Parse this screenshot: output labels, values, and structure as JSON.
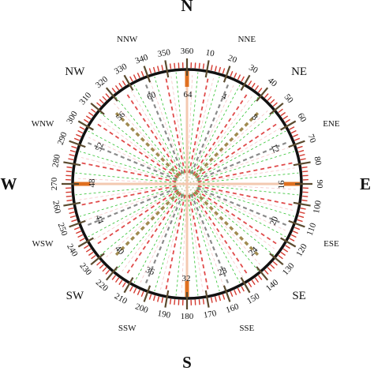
{
  "compass": {
    "cardinals": [
      {
        "label": "N",
        "bearing": 0
      },
      {
        "label": "E",
        "bearing": 90
      },
      {
        "label": "S",
        "bearing": 180
      },
      {
        "label": "W",
        "bearing": 270
      }
    ],
    "intercardinals": [
      {
        "label": "NE",
        "bearing": 45
      },
      {
        "label": "SE",
        "bearing": 135
      },
      {
        "label": "SW",
        "bearing": 225
      },
      {
        "label": "NW",
        "bearing": 315
      }
    ],
    "minor_points": [
      {
        "label": "NNE",
        "bearing": 22.5
      },
      {
        "label": "ENE",
        "bearing": 67.5
      },
      {
        "label": "ESE",
        "bearing": 112.5
      },
      {
        "label": "SSE",
        "bearing": 157.5
      },
      {
        "label": "SSW",
        "bearing": 202.5
      },
      {
        "label": "WSW",
        "bearing": 247.5
      },
      {
        "label": "WNW",
        "bearing": 292.5
      },
      {
        "label": "NNW",
        "bearing": 337.5
      }
    ],
    "degree_labels": [
      "360",
      "10",
      "20",
      "30",
      "40",
      "50",
      "60",
      "70",
      "80",
      "90",
      "100",
      "110",
      "120",
      "130",
      "140",
      "150",
      "160",
      "170",
      "180",
      "190",
      "200",
      "210",
      "220",
      "230",
      "240",
      "250",
      "260",
      "270",
      "280",
      "290",
      "300",
      "310",
      "320",
      "330",
      "340",
      "350"
    ],
    "inner_labels": [
      "64",
      "4",
      "8",
      "12",
      "16",
      "20",
      "24",
      "28",
      "32",
      "36",
      "40",
      "44",
      "48",
      "52",
      "56",
      "60"
    ],
    "colors": {
      "ring": "#111111",
      "major_tick": "#5a4a2e",
      "minor_tick": "#d43a30",
      "cardinal_bar": "#e07020",
      "cardinal_line": "#f3c9b0",
      "red_dash": "#e04a4a",
      "gray_dash": "#8a8a8a",
      "olive_dash": "#a08a50",
      "green_dash": "#2fc22f",
      "pink_dash": "#f0a0a0",
      "center_dash": "#c8d8b0"
    }
  }
}
